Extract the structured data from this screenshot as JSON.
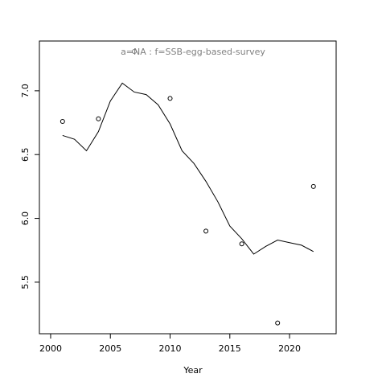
{
  "chart_data": {
    "type": "line",
    "title": "a=NA  :  f=SSB-egg-based-survey",
    "x_label": "Year",
    "x": [
      2001,
      2002,
      2003,
      2004,
      2005,
      2006,
      2007,
      2008,
      2009,
      2010,
      2011,
      2012,
      2013,
      2014,
      2015,
      2016,
      2017,
      2018,
      2019,
      2020,
      2021,
      2022
    ],
    "values": [
      6.65,
      6.62,
      6.53,
      6.68,
      6.92,
      7.06,
      6.99,
      6.97,
      6.89,
      6.74,
      6.53,
      6.43,
      6.29,
      6.13,
      5.94,
      5.84,
      5.72,
      5.78,
      5.83,
      5.81,
      5.79,
      5.74
    ],
    "points_x": [
      2001,
      2004,
      2010,
      2013,
      2016,
      2019,
      2022
    ],
    "points": [
      6.76,
      6.78,
      6.94,
      5.9,
      5.8,
      5.18,
      6.25
    ],
    "color": "#000000",
    "xlim": [
      1999.06,
      2023.9
    ],
    "ylim": [
      5.096,
      7.39
    ],
    "xticks": [
      2000,
      2005,
      2010,
      2015,
      2020
    ],
    "yticks": [
      5.5,
      {
        "value": 6,
        "label": "6.0"
      },
      6.5,
      {
        "value": 7,
        "label": "7.0"
      }
    ]
  }
}
